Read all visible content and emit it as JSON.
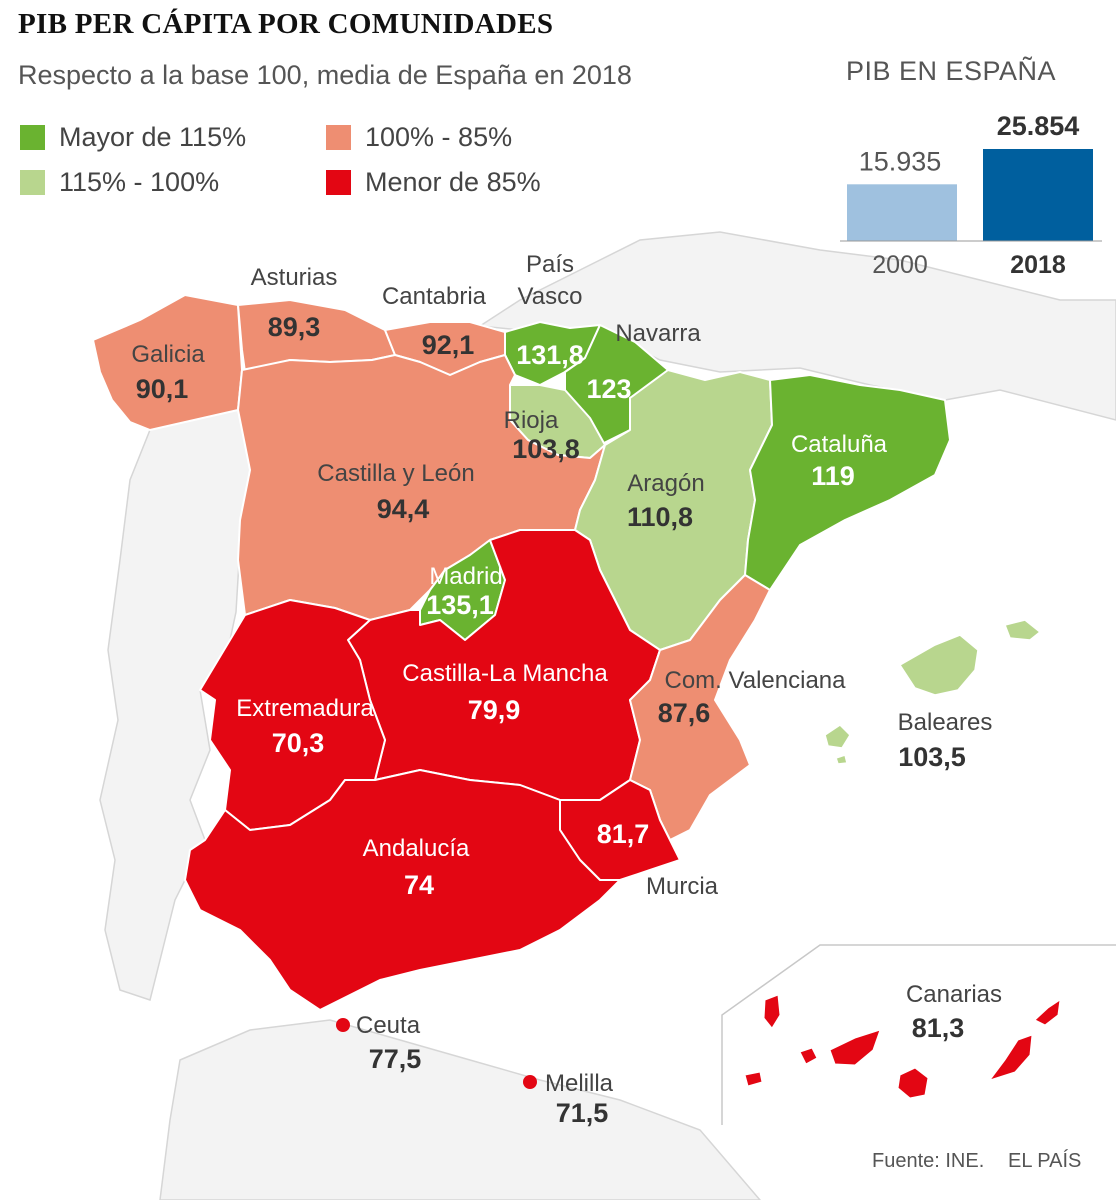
{
  "title": "PIB PER CÁPITA POR COMUNIDADES",
  "subtitle": "Respecto a la base 100, media de España en 2018",
  "colors": {
    "mayor_115": "#6ab330",
    "rango_115_100": "#b8d68e",
    "rango_100_85": "#ee8e72",
    "menor_85": "#e30613",
    "land_outside": "#f2f2f2",
    "bar_2000": "#9fc1df",
    "bar_2018": "#005f9e"
  },
  "legend": [
    {
      "label": "Mayor de 115%",
      "color": "#6ab330"
    },
    {
      "label": "100% - 85%",
      "color": "#ee8e72"
    },
    {
      "label": "115% - 100%",
      "color": "#b8d68e"
    },
    {
      "label": "Menor de 85%",
      "color": "#e30613"
    }
  ],
  "regions": {
    "galicia": {
      "name": "Galicia",
      "value": "90,1"
    },
    "asturias": {
      "name": "Asturias",
      "value": "89,3"
    },
    "cantabria": {
      "name": "Cantabria",
      "value": "92,1"
    },
    "pais_vasco": {
      "name1": "País",
      "name2": "Vasco",
      "value": "131,8"
    },
    "navarra": {
      "name": "Navarra",
      "value": "123"
    },
    "rioja": {
      "name": "Rioja",
      "value": "103,8"
    },
    "castilla_leon": {
      "name": "Castilla y León",
      "value": "94,4"
    },
    "aragon": {
      "name": "Aragón",
      "value": "110,8"
    },
    "cataluna": {
      "name": "Cataluña",
      "value": "119"
    },
    "madrid": {
      "name": "Madrid",
      "value": "135,1"
    },
    "castilla_la_mancha": {
      "name": "Castilla-La Mancha",
      "value": "79,9"
    },
    "com_valenciana": {
      "name": "Com. Valenciana",
      "value": "87,6"
    },
    "baleares": {
      "name": "Baleares",
      "value": "103,5"
    },
    "extremadura": {
      "name": "Extremadura",
      "value": "70,3"
    },
    "andalucia": {
      "name": "Andalucía",
      "value": "74"
    },
    "murcia": {
      "name": "Murcia",
      "value": "81,7"
    },
    "ceuta": {
      "name": "Ceuta",
      "value": "77,5"
    },
    "melilla": {
      "name": "Melilla",
      "value": "71,5"
    },
    "canarias": {
      "name": "Canarias",
      "value": "81,3"
    }
  },
  "chart_data": {
    "type": "bar",
    "title": "PIB EN ESPAÑA",
    "categories": [
      "2000",
      "2018"
    ],
    "values": [
      15935,
      25854
    ],
    "value_labels": [
      "15.935",
      "25.854"
    ]
  },
  "footer": {
    "source": "Fuente: INE.",
    "brand": "EL PAÍS"
  }
}
